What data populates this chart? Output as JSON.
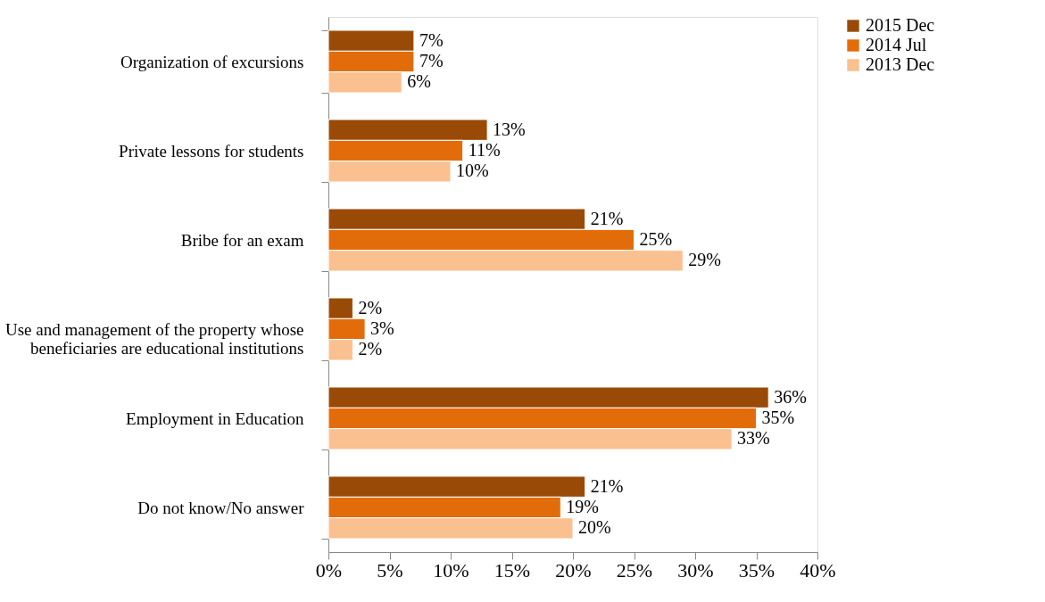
{
  "chart_data": {
    "type": "bar",
    "orientation": "horizontal",
    "categories": [
      "Organization of excursions",
      "Private lessons for students",
      "Bribe for an exam",
      "Use and management of the property whose beneficiaries are educational institutions",
      "Employment in Education",
      "Do not know/No answer"
    ],
    "series": [
      {
        "name": "2015 Dec",
        "color": "#9a4a07",
        "values": [
          7,
          13,
          21,
          2,
          36,
          21
        ],
        "value_labels": [
          "7%",
          "13%",
          "21%",
          "2%",
          "36%",
          "21%"
        ]
      },
      {
        "name": "2014 Jul",
        "color": "#e36c0a",
        "values": [
          7,
          11,
          25,
          3,
          35,
          19
        ],
        "value_labels": [
          "7%",
          "11%",
          "25%",
          "3%",
          "35%",
          "19%"
        ]
      },
      {
        "name": "2013 Dec",
        "color": "#fac090",
        "values": [
          6,
          10,
          29,
          2,
          33,
          20
        ],
        "value_labels": [
          "6%",
          "10%",
          "29%",
          "2%",
          "33%",
          "20%"
        ]
      }
    ],
    "xlim": [
      0,
      40
    ],
    "xticks": [
      {
        "value": 0,
        "label": "0%"
      },
      {
        "value": 5,
        "label": "5%"
      },
      {
        "value": 10,
        "label": "10%"
      },
      {
        "value": 15,
        "label": "15%"
      },
      {
        "value": 20,
        "label": "20%"
      },
      {
        "value": 25,
        "label": "25%"
      },
      {
        "value": 30,
        "label": "30%"
      },
      {
        "value": 35,
        "label": "35%"
      },
      {
        "value": 40,
        "label": "40%"
      }
    ],
    "grid": false,
    "legend": "right"
  }
}
